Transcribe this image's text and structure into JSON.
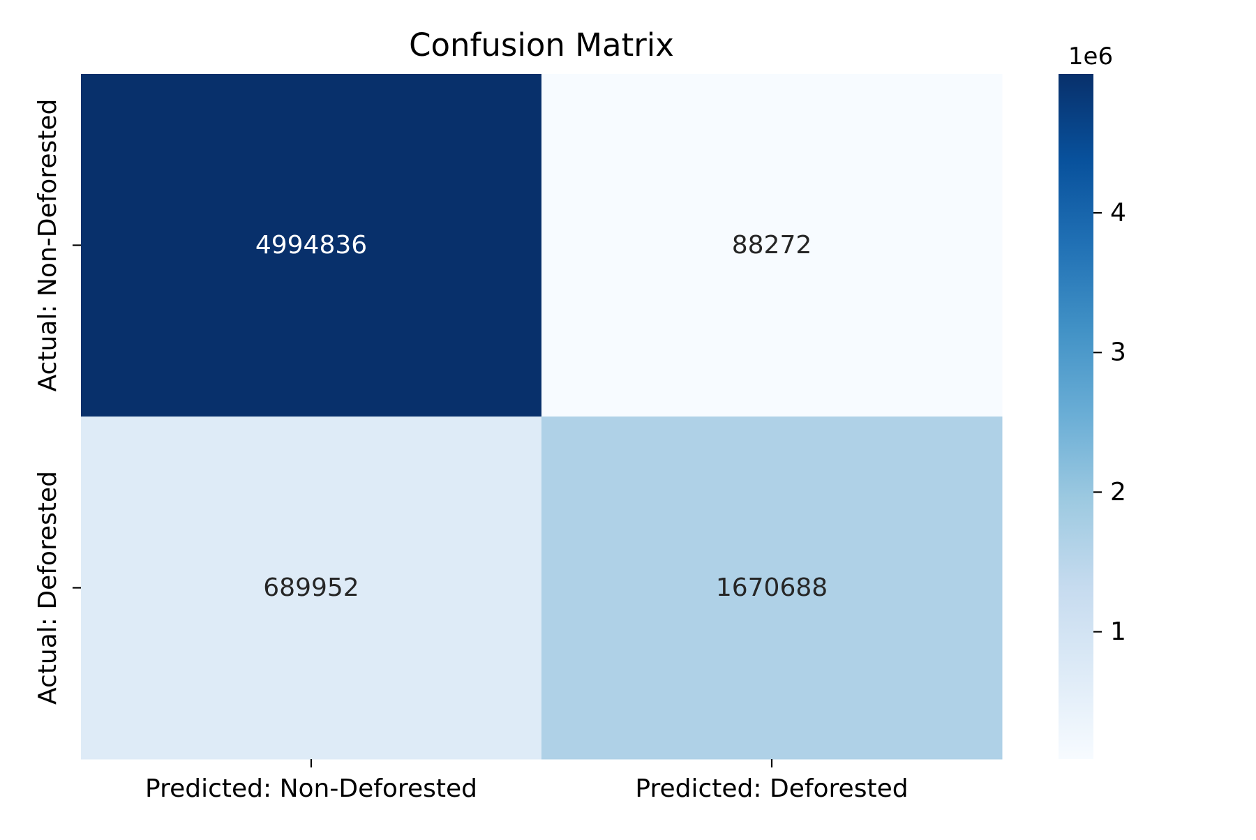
{
  "chart_data": {
    "type": "heatmap",
    "title": "Confusion Matrix",
    "xlabel": "",
    "ylabel": "",
    "x_categories": [
      "Predicted: Non-Deforested",
      "Predicted: Deforested"
    ],
    "y_categories": [
      "Actual: Non-Deforested",
      "Actual: Deforested"
    ],
    "values": [
      [
        4994836,
        88272
      ],
      [
        689952,
        1670688
      ]
    ],
    "colormap": "Blues",
    "colorbar": {
      "offset_label": "1e6",
      "ticks": [
        1,
        2,
        3,
        4
      ],
      "tick_labels": [
        "1",
        "2",
        "3",
        "4"
      ],
      "range": [
        88272,
        4994836
      ],
      "scale": 1000000
    },
    "annotation_colors": {
      "on_dark": "#ffffff",
      "on_light": "#262626"
    },
    "grid": false,
    "legend": "colorbar-right"
  }
}
